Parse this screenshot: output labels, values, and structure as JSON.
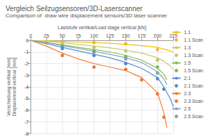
{
  "chart_data": {
    "type": "line",
    "title": "Vergleich Seilzugsensoren/3D-Laserscanner",
    "subtitle": "Comparison of  draw wire displacement sensors/3D laser scanner",
    "xlabel": "Laststufe vertikal/Load stage vertical [kN]",
    "ylabel": "Verschiebung vertikal [mm]\nDisplacement vertical [mm]",
    "xlim": [
      0,
      225
    ],
    "xticks": [
      0,
      25,
      50,
      75,
      100,
      125,
      150,
      175,
      200,
      225
    ],
    "ylim": [
      -8,
      0
    ],
    "yticks": [
      -8,
      -7,
      -6,
      -5,
      -4,
      -3,
      -2,
      -1,
      0
    ],
    "grid": true,
    "legend": "right",
    "series": [
      {
        "name": "1.1",
        "type": "line",
        "line_style": "solid",
        "color": "#f2c200",
        "x": [
          0,
          25,
          50,
          75,
          100,
          125,
          150,
          175,
          200,
          210,
          220,
          225
        ],
        "values": [
          0,
          -0.05,
          -0.1,
          -0.15,
          -0.2,
          -0.25,
          -0.35,
          -0.45,
          -0.6,
          -0.75,
          -0.9,
          -1.0
        ]
      },
      {
        "name": "1.1 Scan",
        "type": "scatter",
        "marker": "circle",
        "color": "#f0a020",
        "x": [
          25,
          50,
          100,
          150,
          200
        ],
        "values": [
          -0.2,
          -0.1,
          -0.2,
          -0.3,
          -0.8
        ]
      },
      {
        "name": "1.3",
        "type": "line",
        "line_style": "solid",
        "color": "#c9c96a",
        "x": [
          0,
          25,
          50,
          75,
          100,
          125,
          150,
          175,
          200,
          210,
          220,
          225
        ],
        "values": [
          0,
          -0.1,
          -0.2,
          -0.35,
          -0.5,
          -0.65,
          -0.85,
          -1.1,
          -1.5,
          -1.8,
          -2.2,
          -2.5
        ]
      },
      {
        "name": "1.3 Scan",
        "type": "scatter",
        "marker": "circle",
        "color": "#b5b54a",
        "x": [
          50,
          100,
          150,
          200
        ],
        "values": [
          -0.3,
          -0.6,
          -0.9,
          -1.7
        ]
      },
      {
        "name": "1.5",
        "type": "line",
        "line_style": "solid",
        "color": "#7cbf4a",
        "x": [
          0,
          25,
          50,
          75,
          100,
          125,
          150,
          175,
          200,
          210,
          215
        ],
        "values": [
          0,
          -0.2,
          -0.4,
          -0.6,
          -0.8,
          -1.0,
          -1.3,
          -1.7,
          -2.4,
          -2.9,
          -3.4
        ]
      },
      {
        "name": "1.5 Scan",
        "type": "scatter",
        "marker": "circle",
        "color": "#5aa832",
        "x": [
          50,
          100,
          150,
          200
        ],
        "values": [
          -0.5,
          -0.9,
          -1.4,
          -2.3
        ]
      },
      {
        "name": "2.1",
        "type": "line",
        "line_style": "solid",
        "color": "#4f8fd8",
        "x": [
          0,
          25,
          50,
          75,
          100,
          125,
          150,
          175,
          200,
          210,
          220,
          225
        ],
        "values": [
          0,
          -0.3,
          -0.6,
          -0.9,
          -1.2,
          -1.5,
          -1.9,
          -2.4,
          -3.2,
          -4.0,
          -5.0,
          -5.7
        ]
      },
      {
        "name": "2.1 Scan",
        "type": "scatter",
        "marker": "circle",
        "color": "#2f6fb8",
        "x": [
          50,
          100,
          150,
          200,
          210
        ],
        "values": [
          -0.7,
          -1.3,
          -2.0,
          -3.3,
          -4.2
        ]
      },
      {
        "name": "2.3",
        "type": "line",
        "line_style": "solid",
        "color": "#f07a2a",
        "x": [
          0,
          25,
          50,
          75,
          100,
          125,
          150,
          175,
          200,
          210,
          215
        ],
        "values": [
          0,
          -0.5,
          -1.1,
          -1.6,
          -2.0,
          -2.3,
          -2.6,
          -3.2,
          -4.5,
          -6.2,
          -7.5
        ]
      },
      {
        "name": "2.3 Scan",
        "type": "scatter",
        "marker": "circle",
        "color": "#e05a10",
        "x": [
          50,
          100,
          150,
          175,
          200,
          210
        ],
        "values": [
          -1.3,
          -2.3,
          -2.5,
          -3.4,
          -4.6,
          -6.6
        ]
      },
      {
        "name": "2.5",
        "type": "line",
        "line_style": "solid",
        "color": "#8aa3bf",
        "x": [
          0,
          25,
          50,
          75,
          100,
          125,
          150,
          175,
          200,
          210,
          215
        ],
        "values": [
          0,
          -0.2,
          -0.45,
          -0.7,
          -0.95,
          -1.2,
          -1.5,
          -1.9,
          -2.7,
          -3.3,
          -3.8
        ]
      },
      {
        "name": "2.5 Scan",
        "type": "scatter",
        "marker": "circle",
        "color": "#6a85a5",
        "x": [
          50,
          100,
          150,
          200
        ],
        "values": [
          -0.5,
          -1.0,
          -1.6,
          -2.8
        ]
      }
    ]
  }
}
